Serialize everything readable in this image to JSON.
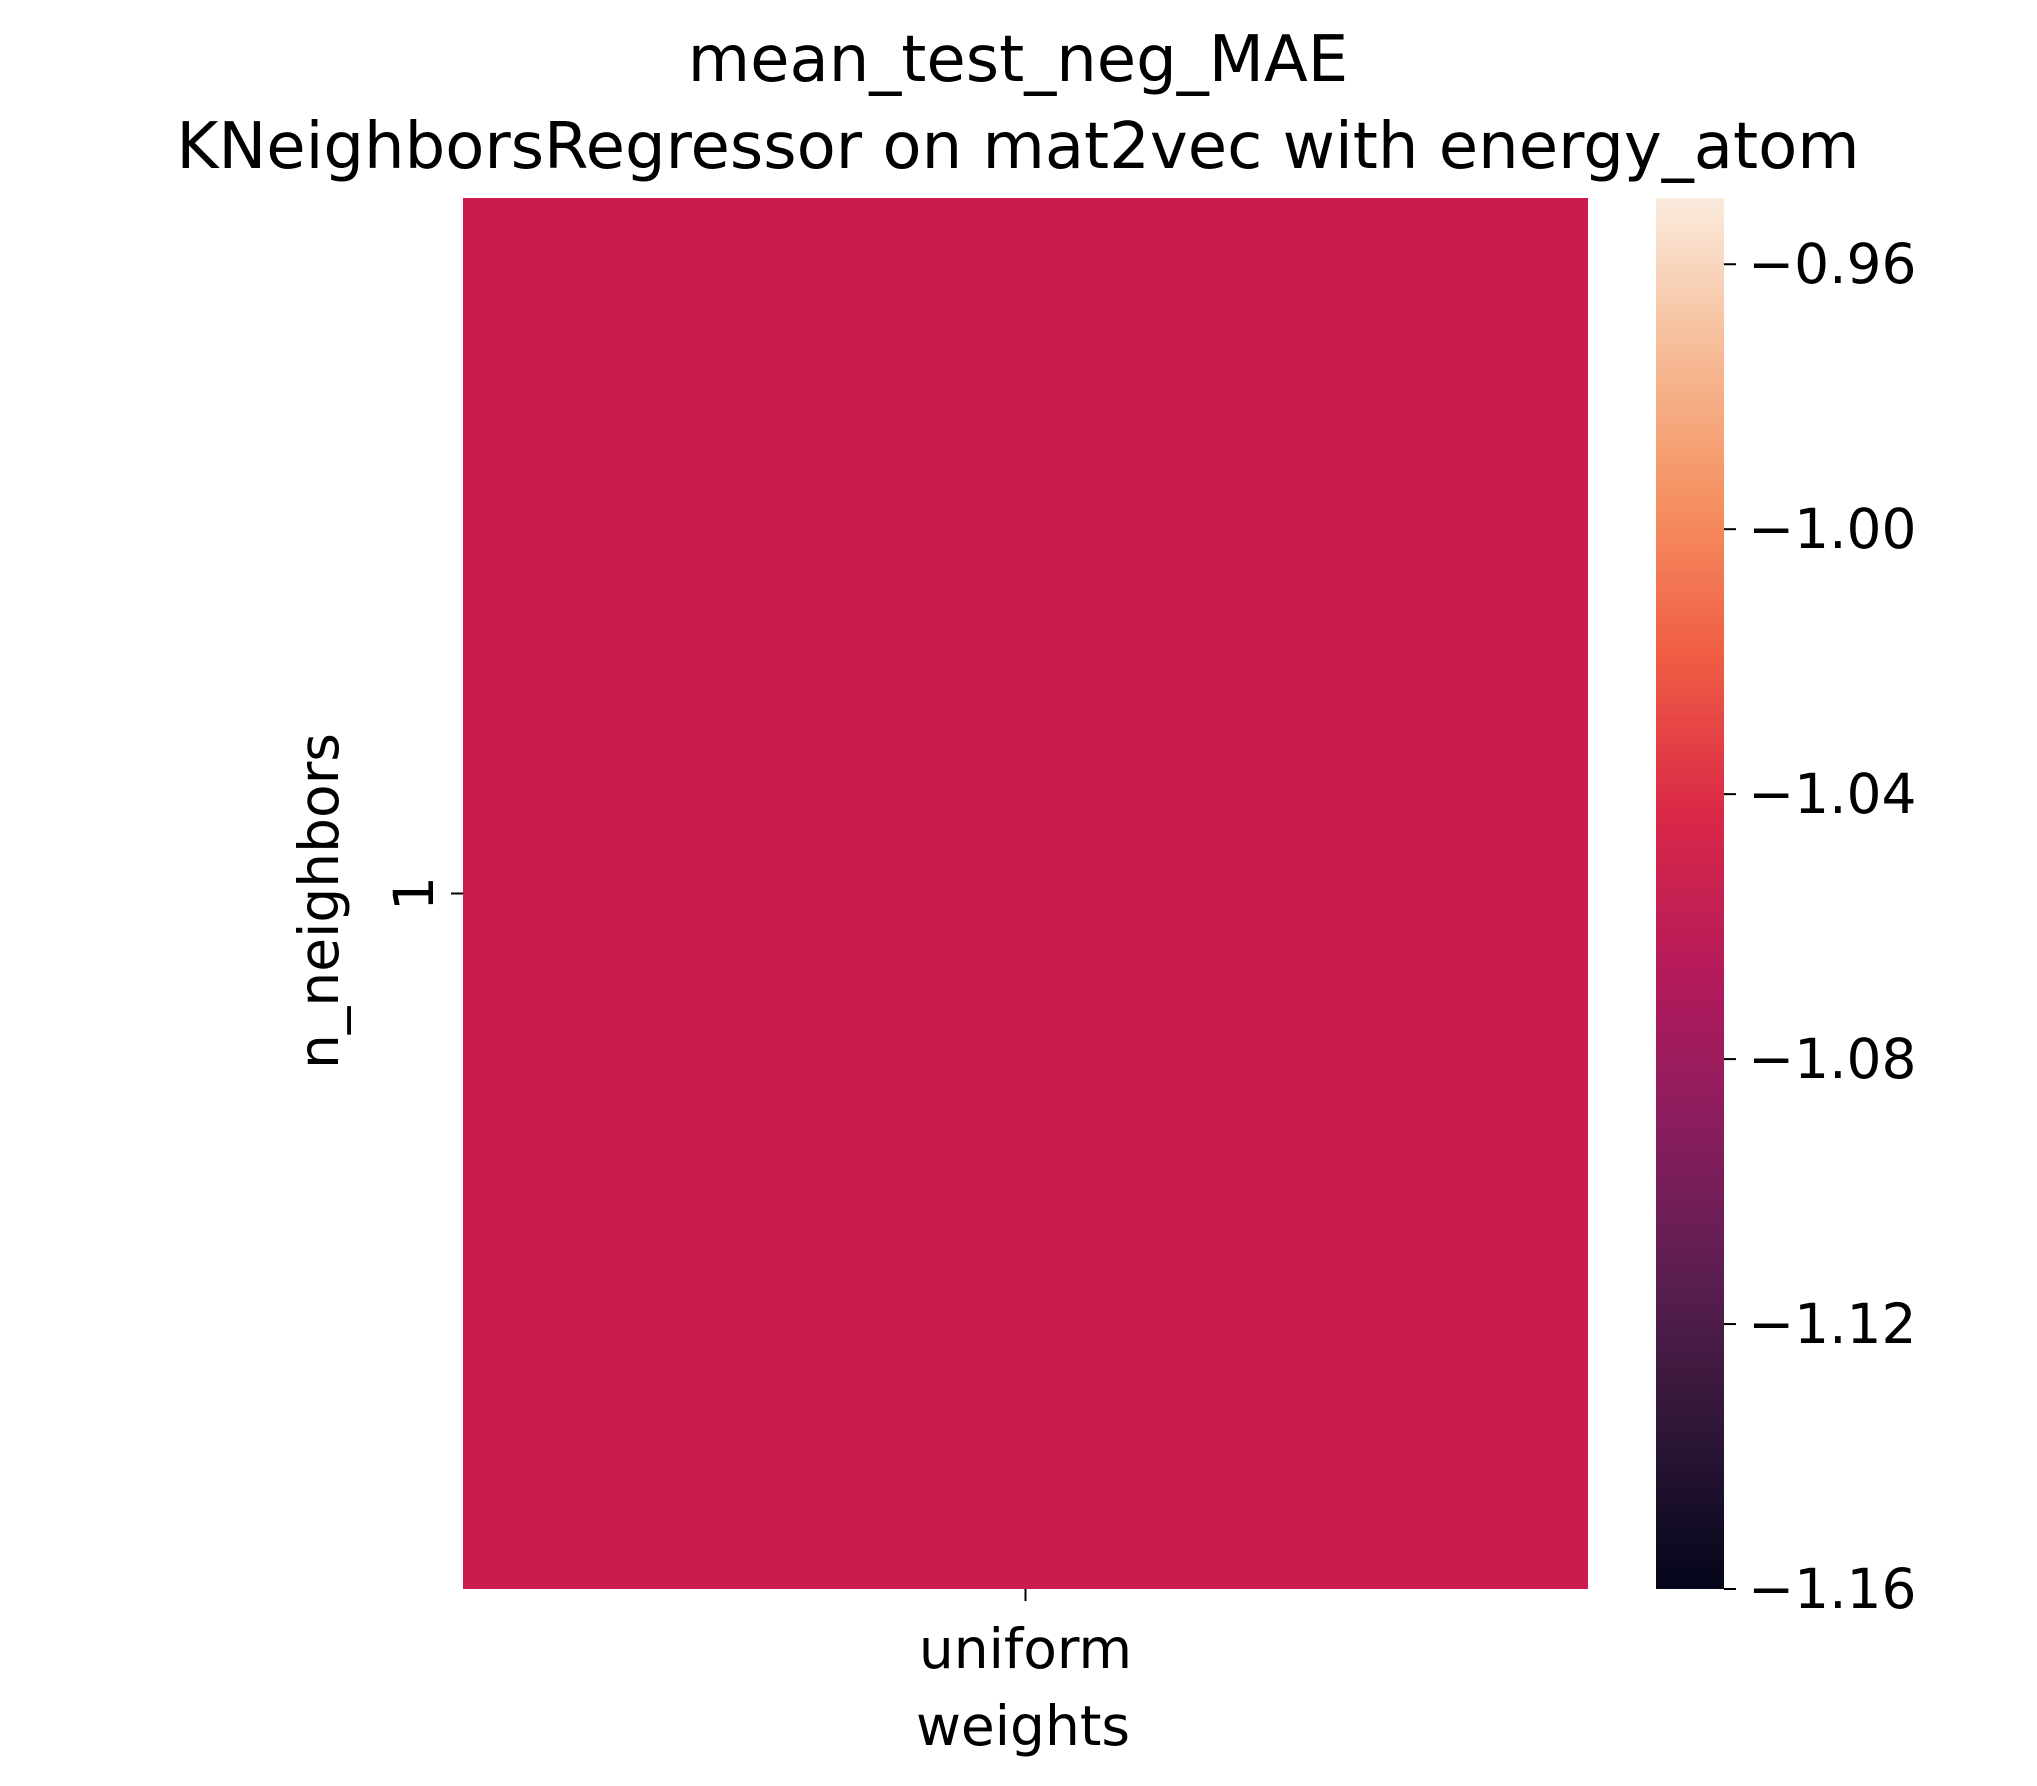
{
  "chart_data": {
    "type": "heatmap",
    "title": "mean_test_neg_MAE",
    "subtitle": "KNeighborsRegressor on mat2vec with energy_atom",
    "xlabel": "weights",
    "ylabel": "n_neighbors",
    "x_categories": [
      "uniform"
    ],
    "y_categories": [
      "1"
    ],
    "values": [
      [
        -1.06
      ]
    ],
    "cell_color": "#cb1b4f",
    "colorbar": {
      "min": -1.16,
      "max": -0.95,
      "ticks": [
        -1.16,
        -1.12,
        -1.08,
        -1.04,
        -1.0,
        -0.96
      ],
      "tick_labels": [
        "−1.16",
        "−1.12",
        "−1.08",
        "−1.04",
        "−1.00",
        "−0.96"
      ],
      "colormap": "rocket",
      "stops": [
        "#03051a",
        "#2d1636",
        "#5a1e50",
        "#8a1d5e",
        "#b51a5b",
        "#d92847",
        "#ef5b44",
        "#f58f5f",
        "#f6bb96",
        "#faebdd"
      ]
    },
    "grid": false,
    "legend": "colorbar-right"
  }
}
